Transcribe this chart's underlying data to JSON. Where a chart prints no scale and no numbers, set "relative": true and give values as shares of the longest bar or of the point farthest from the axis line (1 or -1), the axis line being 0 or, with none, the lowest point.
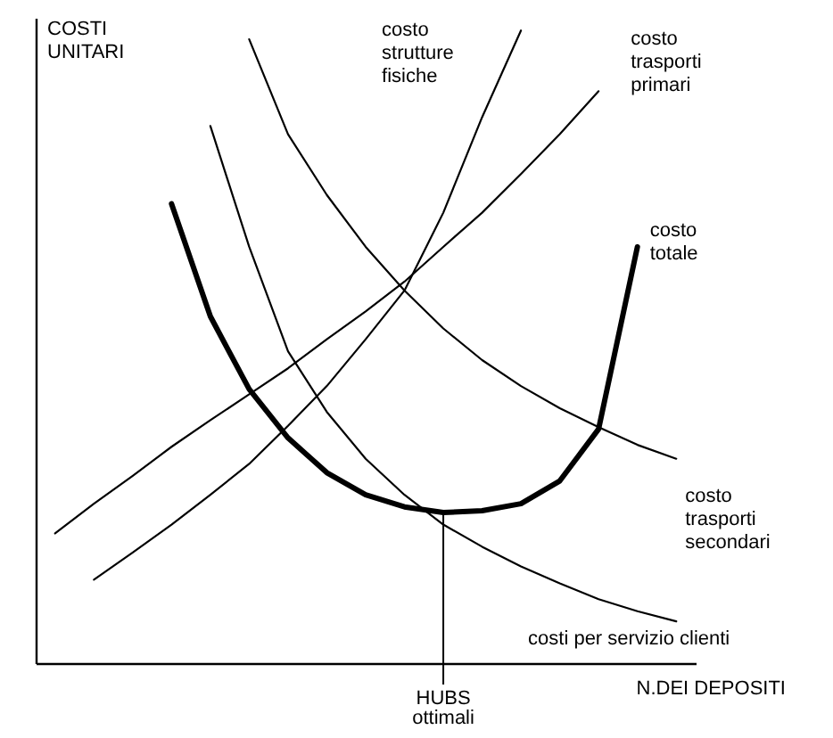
{
  "chart_data": {
    "type": "line",
    "relative": true,
    "xlabel": "N.DEI DEPOSITI",
    "ylabel": "COSTI UNITARI",
    "legend": false,
    "grid": false,
    "marker": "none",
    "annotations": [
      "HUBS ottimali"
    ],
    "categories": [
      null,
      null,
      null,
      null,
      null,
      null,
      null,
      null,
      null,
      null,
      null,
      null,
      null,
      null,
      null,
      null,
      null
    ],
    "series": [
      {
        "name": "costo\nstrutture\nfisiche",
        "color": "#000000",
        "values": [
          null,
          0.132,
          0.175,
          0.219,
          0.266,
          0.315,
          0.375,
          0.438,
          0.512,
          0.589,
          0.712,
          0.863,
          1,
          null,
          null,
          null,
          null
        ]
      },
      {
        "name": "costo\ntrasporti\nprimari",
        "color": "#000000",
        "values": [
          0.205,
          0.252,
          0.296,
          0.342,
          0.384,
          0.425,
          0.466,
          0.512,
          0.556,
          0.603,
          0.658,
          0.712,
          0.773,
          0.836,
          0.904,
          null,
          null
        ]
      },
      {
        "name": "costo\ntotale",
        "color": "#000000",
        "values": [
          null,
          null,
          null,
          0.726,
          0.548,
          0.433,
          0.356,
          0.301,
          0.266,
          0.247,
          0.238,
          0.241,
          0.252,
          0.288,
          0.37,
          0.658,
          null
        ]
      },
      {
        "name": "costo\ntrasporti\nsecondari",
        "color": "#000000",
        "values": [
          null,
          null,
          null,
          null,
          null,
          0.986,
          0.836,
          0.74,
          0.658,
          0.589,
          0.529,
          0.479,
          0.438,
          0.403,
          0.373,
          0.345,
          0.323
        ]
      },
      {
        "name": "costi per servizio clienti",
        "color": "#000000",
        "values": [
          null,
          null,
          null,
          null,
          0.849,
          0.658,
          0.493,
          0.397,
          0.323,
          0.266,
          0.219,
          0.184,
          0.153,
          0.126,
          0.101,
          0.082,
          0.066
        ]
      }
    ]
  }
}
